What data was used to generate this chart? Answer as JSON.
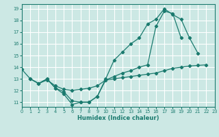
{
  "xlabel": "Humidex (Indice chaleur)",
  "bg_color": "#cce8e4",
  "grid_color": "#ffffff",
  "line_color": "#1a7a6e",
  "xlim": [
    0,
    23
  ],
  "ylim": [
    10.6,
    19.4
  ],
  "xticks": [
    0,
    1,
    2,
    3,
    4,
    5,
    6,
    7,
    8,
    9,
    10,
    11,
    12,
    13,
    14,
    15,
    16,
    17,
    18,
    19,
    20,
    21,
    22,
    23
  ],
  "yticks": [
    11,
    12,
    13,
    14,
    15,
    16,
    17,
    18,
    19
  ],
  "line1_x": [
    0,
    1,
    2,
    3,
    4,
    5,
    6,
    7,
    8,
    9,
    10,
    11,
    12,
    13,
    14,
    15,
    16,
    17,
    18,
    19,
    20,
    21,
    22
  ],
  "line1_y": [
    13.8,
    13.0,
    12.6,
    13.0,
    12.2,
    11.7,
    10.8,
    11.0,
    11.0,
    11.5,
    13.0,
    14.6,
    15.3,
    16.0,
    16.5,
    17.7,
    18.1,
    19.0,
    18.5,
    18.1,
    16.5,
    15.2,
    null
  ],
  "line2_x": [
    1,
    2,
    3,
    4,
    5,
    6,
    7,
    8,
    9,
    10,
    11,
    12,
    13,
    14,
    15,
    16,
    17,
    18,
    19,
    20
  ],
  "line2_y": [
    13.0,
    12.6,
    13.0,
    12.2,
    11.9,
    11.1,
    11.0,
    11.0,
    11.5,
    12.9,
    13.2,
    13.5,
    13.7,
    14.0,
    14.2,
    17.5,
    18.8,
    18.6,
    16.5,
    null
  ],
  "line3_x": [
    1,
    2,
    3,
    4,
    5,
    6,
    7,
    8,
    9,
    10,
    11,
    12,
    13,
    14,
    15,
    16,
    17,
    18,
    19,
    20,
    21,
    22
  ],
  "line3_y": [
    13.0,
    12.6,
    12.9,
    12.4,
    12.1,
    12.0,
    12.1,
    12.2,
    12.4,
    12.9,
    13.0,
    13.1,
    13.2,
    13.3,
    13.4,
    13.5,
    13.7,
    13.9,
    14.0,
    14.1,
    14.15,
    14.2
  ]
}
